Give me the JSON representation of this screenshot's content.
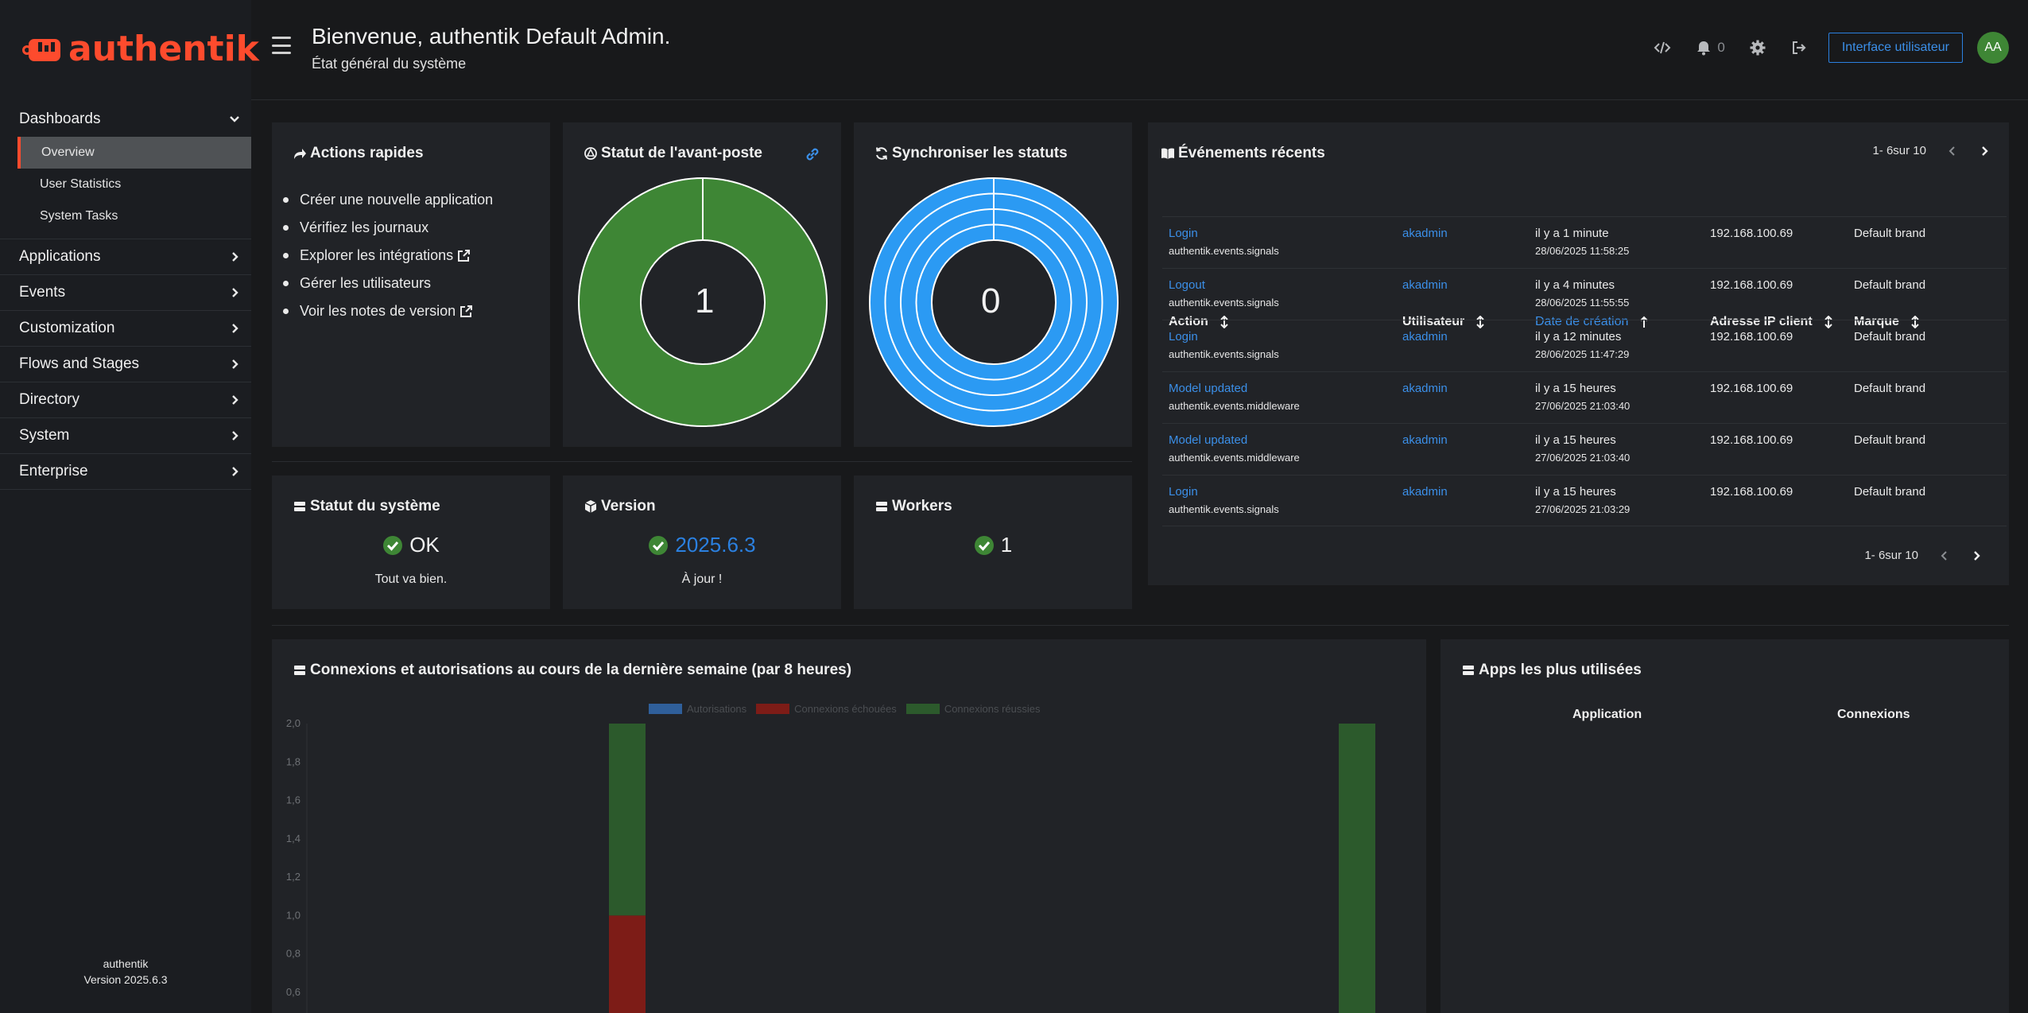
{
  "brand": {
    "name": "authentik",
    "accent": "#fd4b2d"
  },
  "sidebar": {
    "groups": [
      {
        "label": "Dashboards",
        "expanded": true,
        "items": [
          {
            "label": "Overview",
            "active": true
          },
          {
            "label": "User Statistics",
            "active": false
          },
          {
            "label": "System Tasks",
            "active": false
          }
        ]
      },
      {
        "label": "Applications",
        "expanded": false
      },
      {
        "label": "Events",
        "expanded": false
      },
      {
        "label": "Customization",
        "expanded": false
      },
      {
        "label": "Flows and Stages",
        "expanded": false
      },
      {
        "label": "Directory",
        "expanded": false
      },
      {
        "label": "System",
        "expanded": false
      },
      {
        "label": "Enterprise",
        "expanded": false
      }
    ],
    "footer": {
      "name": "authentik",
      "version": "Version 2025.6.3"
    }
  },
  "header": {
    "title": "Bienvenue, authentik Default Admin.",
    "subtitle": "État général du système",
    "notifications_count": "0",
    "user_interface_label": "Interface utilisateur",
    "avatar_initials": "AA"
  },
  "quick_actions": {
    "title": "Actions rapides",
    "items": [
      "Créer une nouvelle application",
      "Vérifiez les journaux",
      "Explorer les intégrations",
      "Gérer les utilisateurs",
      "Voir les notes de version"
    ]
  },
  "outpost_status": {
    "title": "Statut de l'avant-poste",
    "value": "1",
    "color": "#3e8635"
  },
  "sync_status": {
    "title": "Synchroniser les statuts",
    "value": "0",
    "color": "#2b9af3",
    "rings": 4
  },
  "system_status": {
    "title": "Statut du système",
    "value": "OK",
    "subtitle": "Tout va bien."
  },
  "version": {
    "title": "Version",
    "value": "2025.6.3",
    "subtitle": "À jour !"
  },
  "workers": {
    "title": "Workers",
    "value": "1"
  },
  "recent_events": {
    "title": "Événements récents",
    "pagination": "1- 6sur 10",
    "columns": [
      "Action",
      "Utilisateur",
      "Date de création",
      "Adresse IP client",
      "Marque"
    ],
    "rows": [
      {
        "action": "Login",
        "app": "authentik.events.signals",
        "user": "akadmin",
        "when": "il y a 1 minute",
        "date": "28/06/2025 11:58:25",
        "ip": "192.168.100.69",
        "brand": "Default brand"
      },
      {
        "action": "Logout",
        "app": "authentik.events.signals",
        "user": "akadmin",
        "when": "il y a 4 minutes",
        "date": "28/06/2025 11:55:55",
        "ip": "192.168.100.69",
        "brand": "Default brand"
      },
      {
        "action": "Login",
        "app": "authentik.events.signals",
        "user": "akadmin",
        "when": "il y a 12 minutes",
        "date": "28/06/2025 11:47:29",
        "ip": "192.168.100.69",
        "brand": "Default brand"
      },
      {
        "action": "Model updated",
        "app": "authentik.events.middleware",
        "user": "akadmin",
        "when": "il y a 15 heures",
        "date": "27/06/2025 21:03:40",
        "ip": "192.168.100.69",
        "brand": "Default brand"
      },
      {
        "action": "Model updated",
        "app": "authentik.events.middleware",
        "user": "akadmin",
        "when": "il y a 15 heures",
        "date": "27/06/2025 21:03:40",
        "ip": "192.168.100.69",
        "brand": "Default brand"
      },
      {
        "action": "Login",
        "app": "authentik.events.signals",
        "user": "akadmin",
        "when": "il y a 15 heures",
        "date": "27/06/2025 21:03:29",
        "ip": "192.168.100.69",
        "brand": "Default brand"
      }
    ]
  },
  "logins_chart": {
    "title": "Connexions et autorisations au cours de la dernière semaine (par 8 heures)"
  },
  "top_apps": {
    "title": "Apps les plus utilisées",
    "columns": [
      "Application",
      "Connexions"
    ]
  },
  "chart_data": {
    "type": "bar",
    "stacked": true,
    "series": [
      {
        "name": "Autorisations",
        "color": "#2f5f9a",
        "values": [
          0,
          0
        ]
      },
      {
        "name": "Connexions échouées",
        "color": "#7d1c17",
        "values": [
          1,
          0
        ]
      },
      {
        "name": "Connexions réussies",
        "color": "#2c5a2c",
        "values": [
          1,
          2
        ]
      }
    ],
    "y_ticks": [
      "2,0",
      "1,8",
      "1,6",
      "1,4",
      "1,2",
      "1,0",
      "0,8",
      "0,6"
    ],
    "ylim_visible": [
      0.5,
      2.0
    ]
  }
}
